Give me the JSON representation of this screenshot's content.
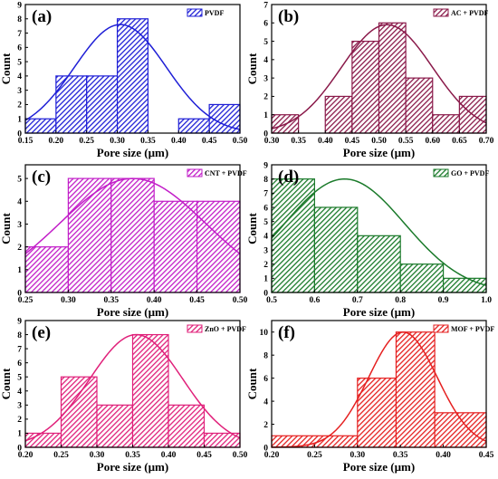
{
  "figure": {
    "x_label": "Pore size (µm)",
    "y_label": "Count"
  },
  "chart_data": [
    {
      "type": "bar",
      "panel": "(a)",
      "legend": "PVDF",
      "legend_position": "top-right",
      "color": "#1f1fd6",
      "bins": [
        [
          0.15,
          0.2
        ],
        [
          0.2,
          0.25
        ],
        [
          0.25,
          0.3
        ],
        [
          0.3,
          0.35
        ],
        [
          0.35,
          0.4
        ],
        [
          0.4,
          0.45
        ],
        [
          0.45,
          0.5
        ]
      ],
      "values": [
        1,
        4,
        4,
        8,
        0,
        1,
        2
      ],
      "fit": {
        "mean": 0.305,
        "sd": 0.075,
        "peak": 7.6
      },
      "xlim": [
        0.15,
        0.5
      ],
      "ylim": [
        0,
        9
      ],
      "xticks": [
        "0.15",
        "0.20",
        "0.25",
        "0.30",
        "0.35",
        "0.40",
        "0.45",
        "0.50"
      ],
      "yticks": [
        "0",
        "1",
        "2",
        "3",
        "4",
        "5",
        "6",
        "7",
        "8",
        "9"
      ],
      "xlabel": "Pore size (µm)",
      "ylabel": "Count"
    },
    {
      "type": "bar",
      "panel": "(b)",
      "legend": "AC + PVDF",
      "legend_position": "top-right",
      "color": "#8a1a4a",
      "bins": [
        [
          0.3,
          0.35
        ],
        [
          0.35,
          0.4
        ],
        [
          0.4,
          0.45
        ],
        [
          0.45,
          0.5
        ],
        [
          0.5,
          0.55
        ],
        [
          0.55,
          0.6
        ],
        [
          0.6,
          0.65
        ],
        [
          0.65,
          0.7
        ]
      ],
      "values": [
        1,
        0,
        2,
        5,
        6,
        3,
        1,
        2
      ],
      "fit": {
        "mean": 0.515,
        "sd": 0.085,
        "peak": 5.9
      },
      "xlim": [
        0.3,
        0.7
      ],
      "ylim": [
        0,
        7
      ],
      "xticks": [
        "0.30",
        "0.35",
        "0.40",
        "0.45",
        "0.50",
        "0.55",
        "0.60",
        "0.65",
        "0.70"
      ],
      "yticks": [
        "0",
        "1",
        "2",
        "3",
        "4",
        "5",
        "6",
        "7"
      ],
      "xlabel": "Pore size (µm)",
      "ylabel": "Count"
    },
    {
      "type": "bar",
      "panel": "(c)",
      "legend": "CNT + PVDF",
      "legend_position": "top-right",
      "color": "#c21ec8",
      "bins": [
        [
          0.25,
          0.3
        ],
        [
          0.3,
          0.35
        ],
        [
          0.35,
          0.4
        ],
        [
          0.4,
          0.45
        ],
        [
          0.45,
          0.5
        ]
      ],
      "values": [
        2,
        5,
        5,
        4,
        4
      ],
      "fit": {
        "mean": 0.375,
        "sd": 0.085,
        "peak": 5.0
      },
      "xlim": [
        0.25,
        0.5
      ],
      "ylim": [
        0,
        5.6
      ],
      "xticks": [
        "0.25",
        "0.30",
        "0.35",
        "0.40",
        "0.45",
        "0.50"
      ],
      "yticks": [
        "0",
        "1",
        "2",
        "3",
        "4",
        "5"
      ],
      "xlabel": "Pore size (µm)",
      "ylabel": "Count"
    },
    {
      "type": "bar",
      "panel": "(d)",
      "legend": "GO + PVDF",
      "legend_position": "top-right",
      "color": "#1a7a2a",
      "bins": [
        [
          0.5,
          0.6
        ],
        [
          0.6,
          0.7
        ],
        [
          0.7,
          0.8
        ],
        [
          0.8,
          0.9
        ],
        [
          0.9,
          1.0
        ]
      ],
      "values": [
        8,
        6,
        4,
        2,
        1
      ],
      "fit": {
        "mean": 0.67,
        "sd": 0.14,
        "peak": 8.0
      },
      "xlim": [
        0.5,
        1.0
      ],
      "ylim": [
        0,
        9
      ],
      "xticks": [
        "0.5",
        "0.6",
        "0.7",
        "0.8",
        "0.9",
        "1.0"
      ],
      "yticks": [
        "0",
        "1",
        "2",
        "3",
        "4",
        "5",
        "6",
        "7",
        "8",
        "9"
      ],
      "xlabel": "Pore size (µm)",
      "ylabel": "Count"
    },
    {
      "type": "bar",
      "panel": "(e)",
      "legend": "ZnO + PVDF",
      "legend_position": "top-right",
      "color": "#e0207a",
      "bins": [
        [
          0.2,
          0.25
        ],
        [
          0.25,
          0.3
        ],
        [
          0.3,
          0.35
        ],
        [
          0.35,
          0.4
        ],
        [
          0.4,
          0.45
        ],
        [
          0.45,
          0.5
        ]
      ],
      "values": [
        1,
        5,
        3,
        8,
        3,
        1
      ],
      "fit": {
        "mean": 0.355,
        "sd": 0.065,
        "peak": 8.0
      },
      "xlim": [
        0.2,
        0.5
      ],
      "ylim": [
        0,
        9
      ],
      "xticks": [
        "0.20",
        "0.25",
        "0.30",
        "0.35",
        "0.40",
        "0.45",
        "0.50"
      ],
      "yticks": [
        "0",
        "1",
        "2",
        "3",
        "4",
        "5",
        "6",
        "7",
        "8",
        "9"
      ],
      "xlabel": "Pore size (µm)",
      "ylabel": "Count"
    },
    {
      "type": "bar",
      "panel": "(f)",
      "legend": "MOF + PVDF",
      "legend_position": "top-right",
      "color": "#e52020",
      "bins": [
        [
          0.2,
          0.3
        ],
        [
          0.3,
          0.345
        ],
        [
          0.345,
          0.39
        ],
        [
          0.39,
          0.45
        ]
      ],
      "values": [
        1,
        6,
        10,
        3
      ],
      "fit": {
        "mean": 0.353,
        "sd": 0.04,
        "peak": 10.0
      },
      "xlim": [
        0.2,
        0.45
      ],
      "ylim": [
        0,
        11
      ],
      "xticks": [
        "0.20",
        "0.25",
        "0.30",
        "0.35",
        "0.40",
        "0.45"
      ],
      "yticks": [
        "0",
        "2",
        "4",
        "6",
        "8",
        "10"
      ],
      "xlabel": "Pore size (µm)",
      "ylabel": "Count"
    }
  ]
}
